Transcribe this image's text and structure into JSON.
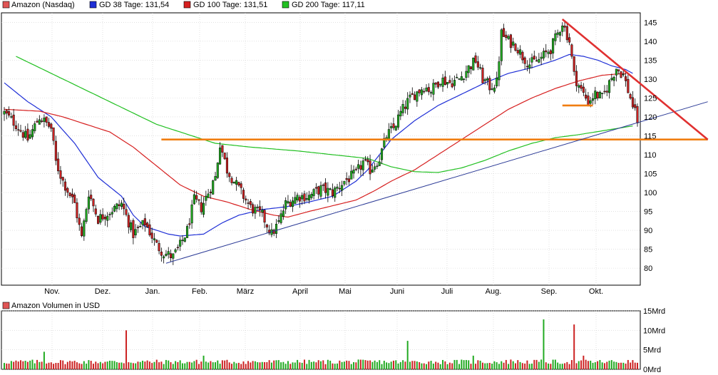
{
  "chart_data": [
    {
      "type": "candlestick",
      "legend": [
        {
          "label": "Amazon (Nasdaq)",
          "color": "#e05555"
        },
        {
          "label": "GD 38 Tage: 131,54",
          "color": "#1f2fd6"
        },
        {
          "label": "GD 100 Tage: 131,51",
          "color": "#d61f1f"
        },
        {
          "label": "GD 200 Tage: 117,11",
          "color": "#22c022"
        }
      ],
      "x_ticks": [
        "Nov.",
        "Dez.",
        "Jan.",
        "Feb.",
        "März",
        "April",
        "Mai",
        "Juni",
        "Juli",
        "Aug.",
        "Sep.",
        "Okt."
      ],
      "y_ticks": [
        80,
        85,
        90,
        95,
        100,
        105,
        110,
        115,
        120,
        125,
        130,
        135,
        140,
        145
      ],
      "ylim": [
        75.5,
        147.5
      ],
      "grid": true,
      "colors": {
        "up": "#22aa22",
        "down": "#cc2222",
        "wick": "#000000"
      },
      "price_anchors": [
        [
          0,
          121
        ],
        [
          5,
          118
        ],
        [
          10,
          114
        ],
        [
          15,
          120
        ],
        [
          20,
          117
        ],
        [
          22,
          108
        ],
        [
          25,
          103
        ],
        [
          30,
          97
        ],
        [
          33,
          88
        ],
        [
          36,
          100
        ],
        [
          40,
          93
        ],
        [
          45,
          95
        ],
        [
          50,
          97
        ],
        [
          55,
          89
        ],
        [
          60,
          92
        ],
        [
          65,
          86
        ],
        [
          68,
          84
        ],
        [
          72,
          83
        ],
        [
          75,
          86
        ],
        [
          78,
          90
        ],
        [
          81,
          98
        ],
        [
          84,
          96
        ],
        [
          87,
          100
        ],
        [
          90,
          104
        ],
        [
          92,
          113
        ],
        [
          95,
          106
        ],
        [
          100,
          101
        ],
        [
          105,
          96
        ],
        [
          110,
          94
        ],
        [
          114,
          89
        ],
        [
          117,
          92
        ],
        [
          120,
          97
        ],
        [
          125,
          99
        ],
        [
          130,
          99
        ],
        [
          135,
          101
        ],
        [
          140,
          100
        ],
        [
          145,
          103
        ],
        [
          150,
          105
        ],
        [
          153,
          108
        ],
        [
          156,
          106
        ],
        [
          160,
          109
        ],
        [
          163,
          115
        ],
        [
          166,
          117
        ],
        [
          169,
          121
        ],
        [
          172,
          124
        ],
        [
          175,
          126
        ],
        [
          179,
          128
        ],
        [
          182,
          127
        ],
        [
          186,
          130
        ],
        [
          190,
          129
        ],
        [
          194,
          130
        ],
        [
          198,
          133
        ],
        [
          201,
          135
        ],
        [
          204,
          130
        ],
        [
          207,
          128
        ],
        [
          210,
          129
        ],
        [
          212,
          142
        ],
        [
          215,
          140
        ],
        [
          218,
          139
        ],
        [
          221,
          136
        ],
        [
          224,
          134
        ],
        [
          228,
          135
        ],
        [
          233,
          138
        ],
        [
          236,
          142
        ],
        [
          238,
          145
        ],
        [
          241,
          140
        ],
        [
          243,
          131
        ],
        [
          246,
          127
        ],
        [
          249,
          124
        ],
        [
          252,
          126
        ],
        [
          255,
          125
        ],
        [
          258,
          129
        ],
        [
          261,
          133
        ],
        [
          264,
          131
        ],
        [
          267,
          125
        ],
        [
          270,
          119
        ]
      ],
      "series": [
        {
          "name": "GD 38 Tage",
          "color": "#1f2fd6",
          "values": [
            [
              0,
              129
            ],
            [
              10,
              124
            ],
            [
              20,
              120
            ],
            [
              30,
              113
            ],
            [
              40,
              104
            ],
            [
              50,
              99
            ],
            [
              55,
              94
            ],
            [
              60,
              91
            ],
            [
              65,
              90
            ],
            [
              70,
              89
            ],
            [
              75,
              88.5
            ],
            [
              85,
              89
            ],
            [
              93,
              92
            ],
            [
              100,
              94
            ],
            [
              110,
              95.5
            ],
            [
              120,
              96.2
            ],
            [
              130,
              97.5
            ],
            [
              140,
              99
            ],
            [
              150,
              103
            ],
            [
              155,
              106
            ],
            [
              160,
              110
            ],
            [
              165,
              114
            ],
            [
              175,
              119
            ],
            [
              185,
              123
            ],
            [
              195,
              126
            ],
            [
              205,
              129
            ],
            [
              215,
              131.5
            ],
            [
              225,
              133
            ],
            [
              235,
              135
            ],
            [
              241,
              136.5
            ],
            [
              247,
              136
            ],
            [
              253,
              135
            ],
            [
              259,
              133.5
            ],
            [
              265,
              132.5
            ],
            [
              268,
              131.5
            ]
          ]
        },
        {
          "name": "GD 100 Tage",
          "color": "#d61f1f",
          "values": [
            [
              0,
              122
            ],
            [
              15,
              121.5
            ],
            [
              25,
              120
            ],
            [
              35,
              118
            ],
            [
              45,
              116
            ],
            [
              55,
              112
            ],
            [
              65,
              107
            ],
            [
              75,
              102
            ],
            [
              85,
              99
            ],
            [
              95,
              97.5
            ],
            [
              105,
              95.5
            ],
            [
              115,
              94
            ],
            [
              121,
              93.5
            ],
            [
              130,
              95
            ],
            [
              140,
              96.5
            ],
            [
              150,
              98
            ],
            [
              158,
              100.5
            ],
            [
              165,
              103
            ],
            [
              175,
              106
            ],
            [
              185,
              110
            ],
            [
              195,
              114
            ],
            [
              205,
              118
            ],
            [
              215,
              122
            ],
            [
              225,
              125
            ],
            [
              235,
              127.5
            ],
            [
              245,
              129.5
            ],
            [
              255,
              131
            ],
            [
              265,
              131.5
            ]
          ]
        },
        {
          "name": "GD 200 Tage",
          "color": "#22c022",
          "values": [
            [
              5,
              136
            ],
            [
              15,
              133
            ],
            [
              25,
              130
            ],
            [
              35,
              127
            ],
            [
              45,
              124
            ],
            [
              55,
              121
            ],
            [
              65,
              118
            ],
            [
              80,
              115
            ],
            [
              90,
              113
            ],
            [
              105,
              112
            ],
            [
              125,
              111
            ],
            [
              140,
              110
            ],
            [
              155,
              109
            ],
            [
              165,
              106.8
            ],
            [
              175,
              105.5
            ],
            [
              185,
              105.3
            ],
            [
              195,
              106.5
            ],
            [
              205,
              108.5
            ],
            [
              215,
              111
            ],
            [
              225,
              113
            ],
            [
              235,
              114.5
            ],
            [
              245,
              115.3
            ],
            [
              255,
              116.3
            ],
            [
              265,
              117.3
            ],
            [
              268,
              117.6
            ]
          ]
        }
      ],
      "annotations": [
        {
          "kind": "horizontal-line",
          "color": "#f07d10",
          "from": [
            67,
            114
          ],
          "to": [
            300,
            114
          ]
        },
        {
          "kind": "horizontal-line",
          "color": "#f07d10",
          "from": [
            238,
            123
          ],
          "to": [
            251,
            123
          ]
        },
        {
          "kind": "trendline",
          "color": "#2b3a96",
          "from": [
            69,
            81.3
          ],
          "to": [
            300,
            124
          ]
        },
        {
          "kind": "trendline",
          "color": "#e03030",
          "from": [
            238,
            145.8
          ],
          "to": [
            300,
            114
          ]
        }
      ]
    },
    {
      "type": "bar",
      "legend": [
        {
          "label": "Amazon Volumen in USD",
          "color": "#e05555"
        }
      ],
      "y_ticks": [
        "0Mrd",
        "5Mrd",
        "10Mrd",
        "15Mrd"
      ],
      "ylim": [
        0,
        15
      ],
      "grid": true,
      "colors": {
        "up": "#22aa22",
        "down": "#cc2222"
      },
      "volume_base": 1.3,
      "volume_spikes": [
        [
          17,
          4.5
        ],
        [
          52,
          10
        ],
        [
          85,
          3.5
        ],
        [
          172,
          7.3
        ],
        [
          200,
          3.5
        ],
        [
          216,
          2.5
        ],
        [
          230,
          12.8
        ],
        [
          243,
          11.5
        ],
        [
          247,
          3.5
        ]
      ]
    }
  ]
}
